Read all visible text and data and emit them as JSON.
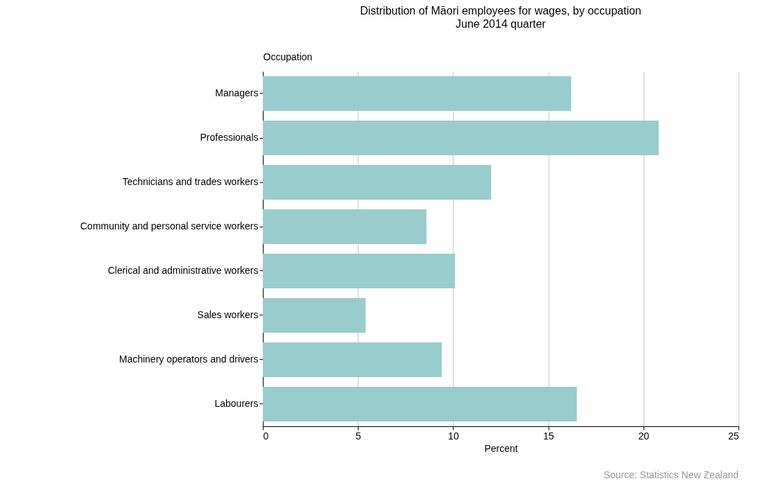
{
  "chart_data": {
    "type": "bar",
    "orientation": "horizontal",
    "title": "Distribution of Māori employees for wages, by occupation",
    "subtitle": "June 2014 quarter",
    "ylabel": "Occupation",
    "xlabel": "Percent",
    "categories": [
      "Managers",
      "Professionals",
      "Technicians and trades workers",
      "Community and personal service workers",
      "Clerical and administrative workers",
      "Sales workers",
      "Machinery operators and drivers",
      "Labourers"
    ],
    "values": [
      16.2,
      20.8,
      12.0,
      8.6,
      10.1,
      5.4,
      9.4,
      16.5
    ],
    "color": "#99cccc",
    "xlim": [
      0,
      25
    ],
    "xticks": [
      0,
      5,
      10,
      15,
      20,
      25
    ],
    "grid": "x",
    "annotations": [
      "Source: Statistics New Zealand"
    ]
  }
}
